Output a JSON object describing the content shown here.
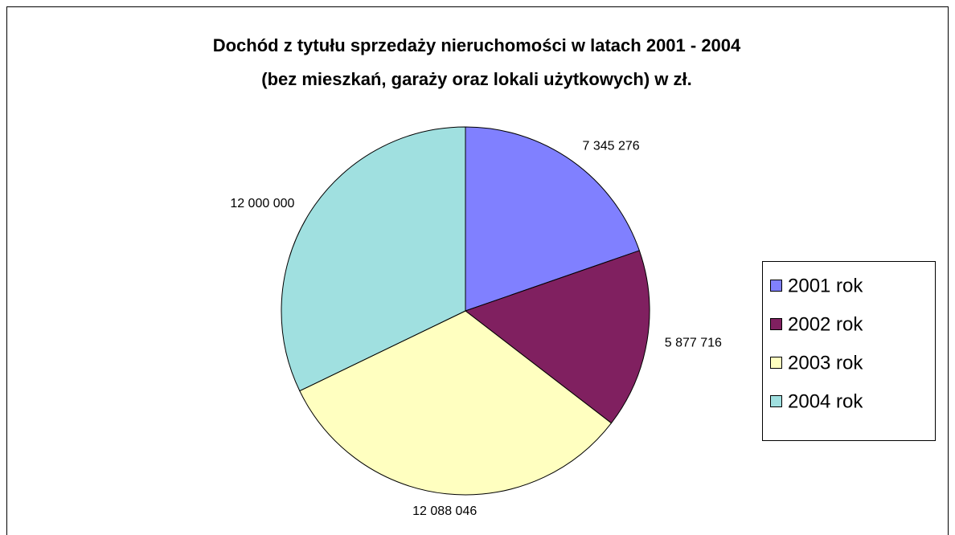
{
  "chart_data": {
    "type": "pie",
    "title": [
      "Dochód z tytułu sprzedaży nieruchomości w latach 2001 - 2004",
      "(bez mieszkań, garaży oraz lokali użytkowych) w zł."
    ],
    "categories": [
      "2001 rok",
      "2002 rok",
      "2003 rok",
      "2004 rok"
    ],
    "values": [
      7345276,
      5877716,
      12088046,
      12000000
    ],
    "value_labels": [
      "7 345 276",
      "5 877 716",
      "12 088 046",
      "12 000 000"
    ],
    "colors": [
      "#8080ff",
      "#802060",
      "#ffffc0",
      "#a0e0e0"
    ],
    "legend": "right"
  }
}
